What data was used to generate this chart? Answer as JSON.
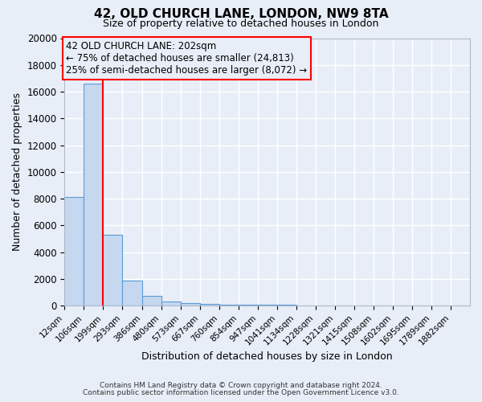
{
  "title": "42, OLD CHURCH LANE, LONDON, NW9 8TA",
  "subtitle": "Size of property relative to detached houses in London",
  "xlabel": "Distribution of detached houses by size in London",
  "ylabel": "Number of detached properties",
  "bar_labels": [
    "12sqm",
    "106sqm",
    "199sqm",
    "293sqm",
    "386sqm",
    "480sqm",
    "573sqm",
    "667sqm",
    "760sqm",
    "854sqm",
    "947sqm",
    "1041sqm",
    "1134sqm",
    "1228sqm",
    "1321sqm",
    "1415sqm",
    "1508sqm",
    "1602sqm",
    "1695sqm",
    "1789sqm",
    "1882sqm"
  ],
  "bar_values": [
    8100,
    16600,
    5300,
    1850,
    720,
    300,
    200,
    150,
    100,
    80,
    60,
    50,
    40,
    35,
    30,
    25,
    20,
    18,
    15,
    12,
    10
  ],
  "bar_color": "#c5d8f0",
  "bar_edge_color": "#5b9bd5",
  "ylim": [
    0,
    20000
  ],
  "yticks": [
    0,
    2000,
    4000,
    6000,
    8000,
    10000,
    12000,
    14000,
    16000,
    18000,
    20000
  ],
  "property_label": "42 OLD CHURCH LANE: 202sqm",
  "annotation_line1": "← 75% of detached houses are smaller (24,813)",
  "annotation_line2": "25% of semi-detached houses are larger (8,072) →",
  "background_color": "#e8eef8",
  "grid_color": "#ffffff",
  "footer_line1": "Contains HM Land Registry data © Crown copyright and database right 2024.",
  "footer_line2": "Contains public sector information licensed under the Open Government Licence v3.0."
}
